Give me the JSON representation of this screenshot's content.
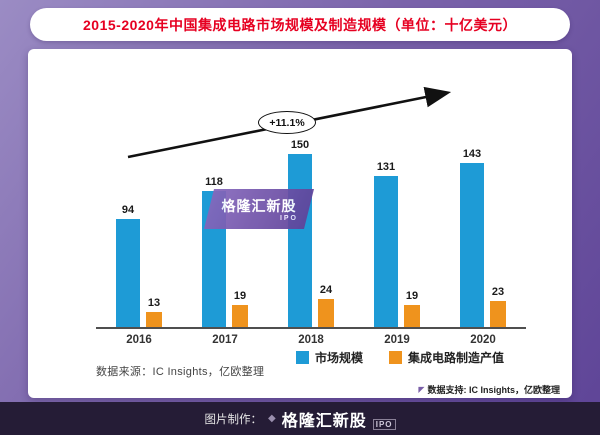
{
  "header": {
    "title": "2015-2020年中国集成电路市场规模及制造规模（单位：十亿美元）"
  },
  "chart_data": {
    "type": "bar",
    "title": "2015-2020年中国集成电路市场规模及制造规模（单位：十亿美元）",
    "unit": "十亿美元",
    "categories": [
      "2016",
      "2017",
      "2018",
      "2019",
      "2020"
    ],
    "series": [
      {
        "name": "市场规模",
        "color": "#1e9bd6",
        "values": [
          94,
          118,
          150,
          131,
          143
        ]
      },
      {
        "name": "集成电路制造产值",
        "color": "#ef931d",
        "values": [
          13,
          19,
          24,
          19,
          23
        ]
      }
    ],
    "annotation": "+11.1%",
    "ylim": [
      0,
      160
    ],
    "grid": false,
    "legend_position": "bottom",
    "value_labels": true
  },
  "notes": {
    "source": "数据来源：IC Insights，亿欧整理",
    "support": "数据支持: IC Insights，亿欧整理"
  },
  "watermark": {
    "brand": "格隆汇新股",
    "sub": "IPO"
  },
  "footer": {
    "prefix": "图片制作：",
    "brand": "格隆汇新股",
    "sub": "IPO"
  }
}
